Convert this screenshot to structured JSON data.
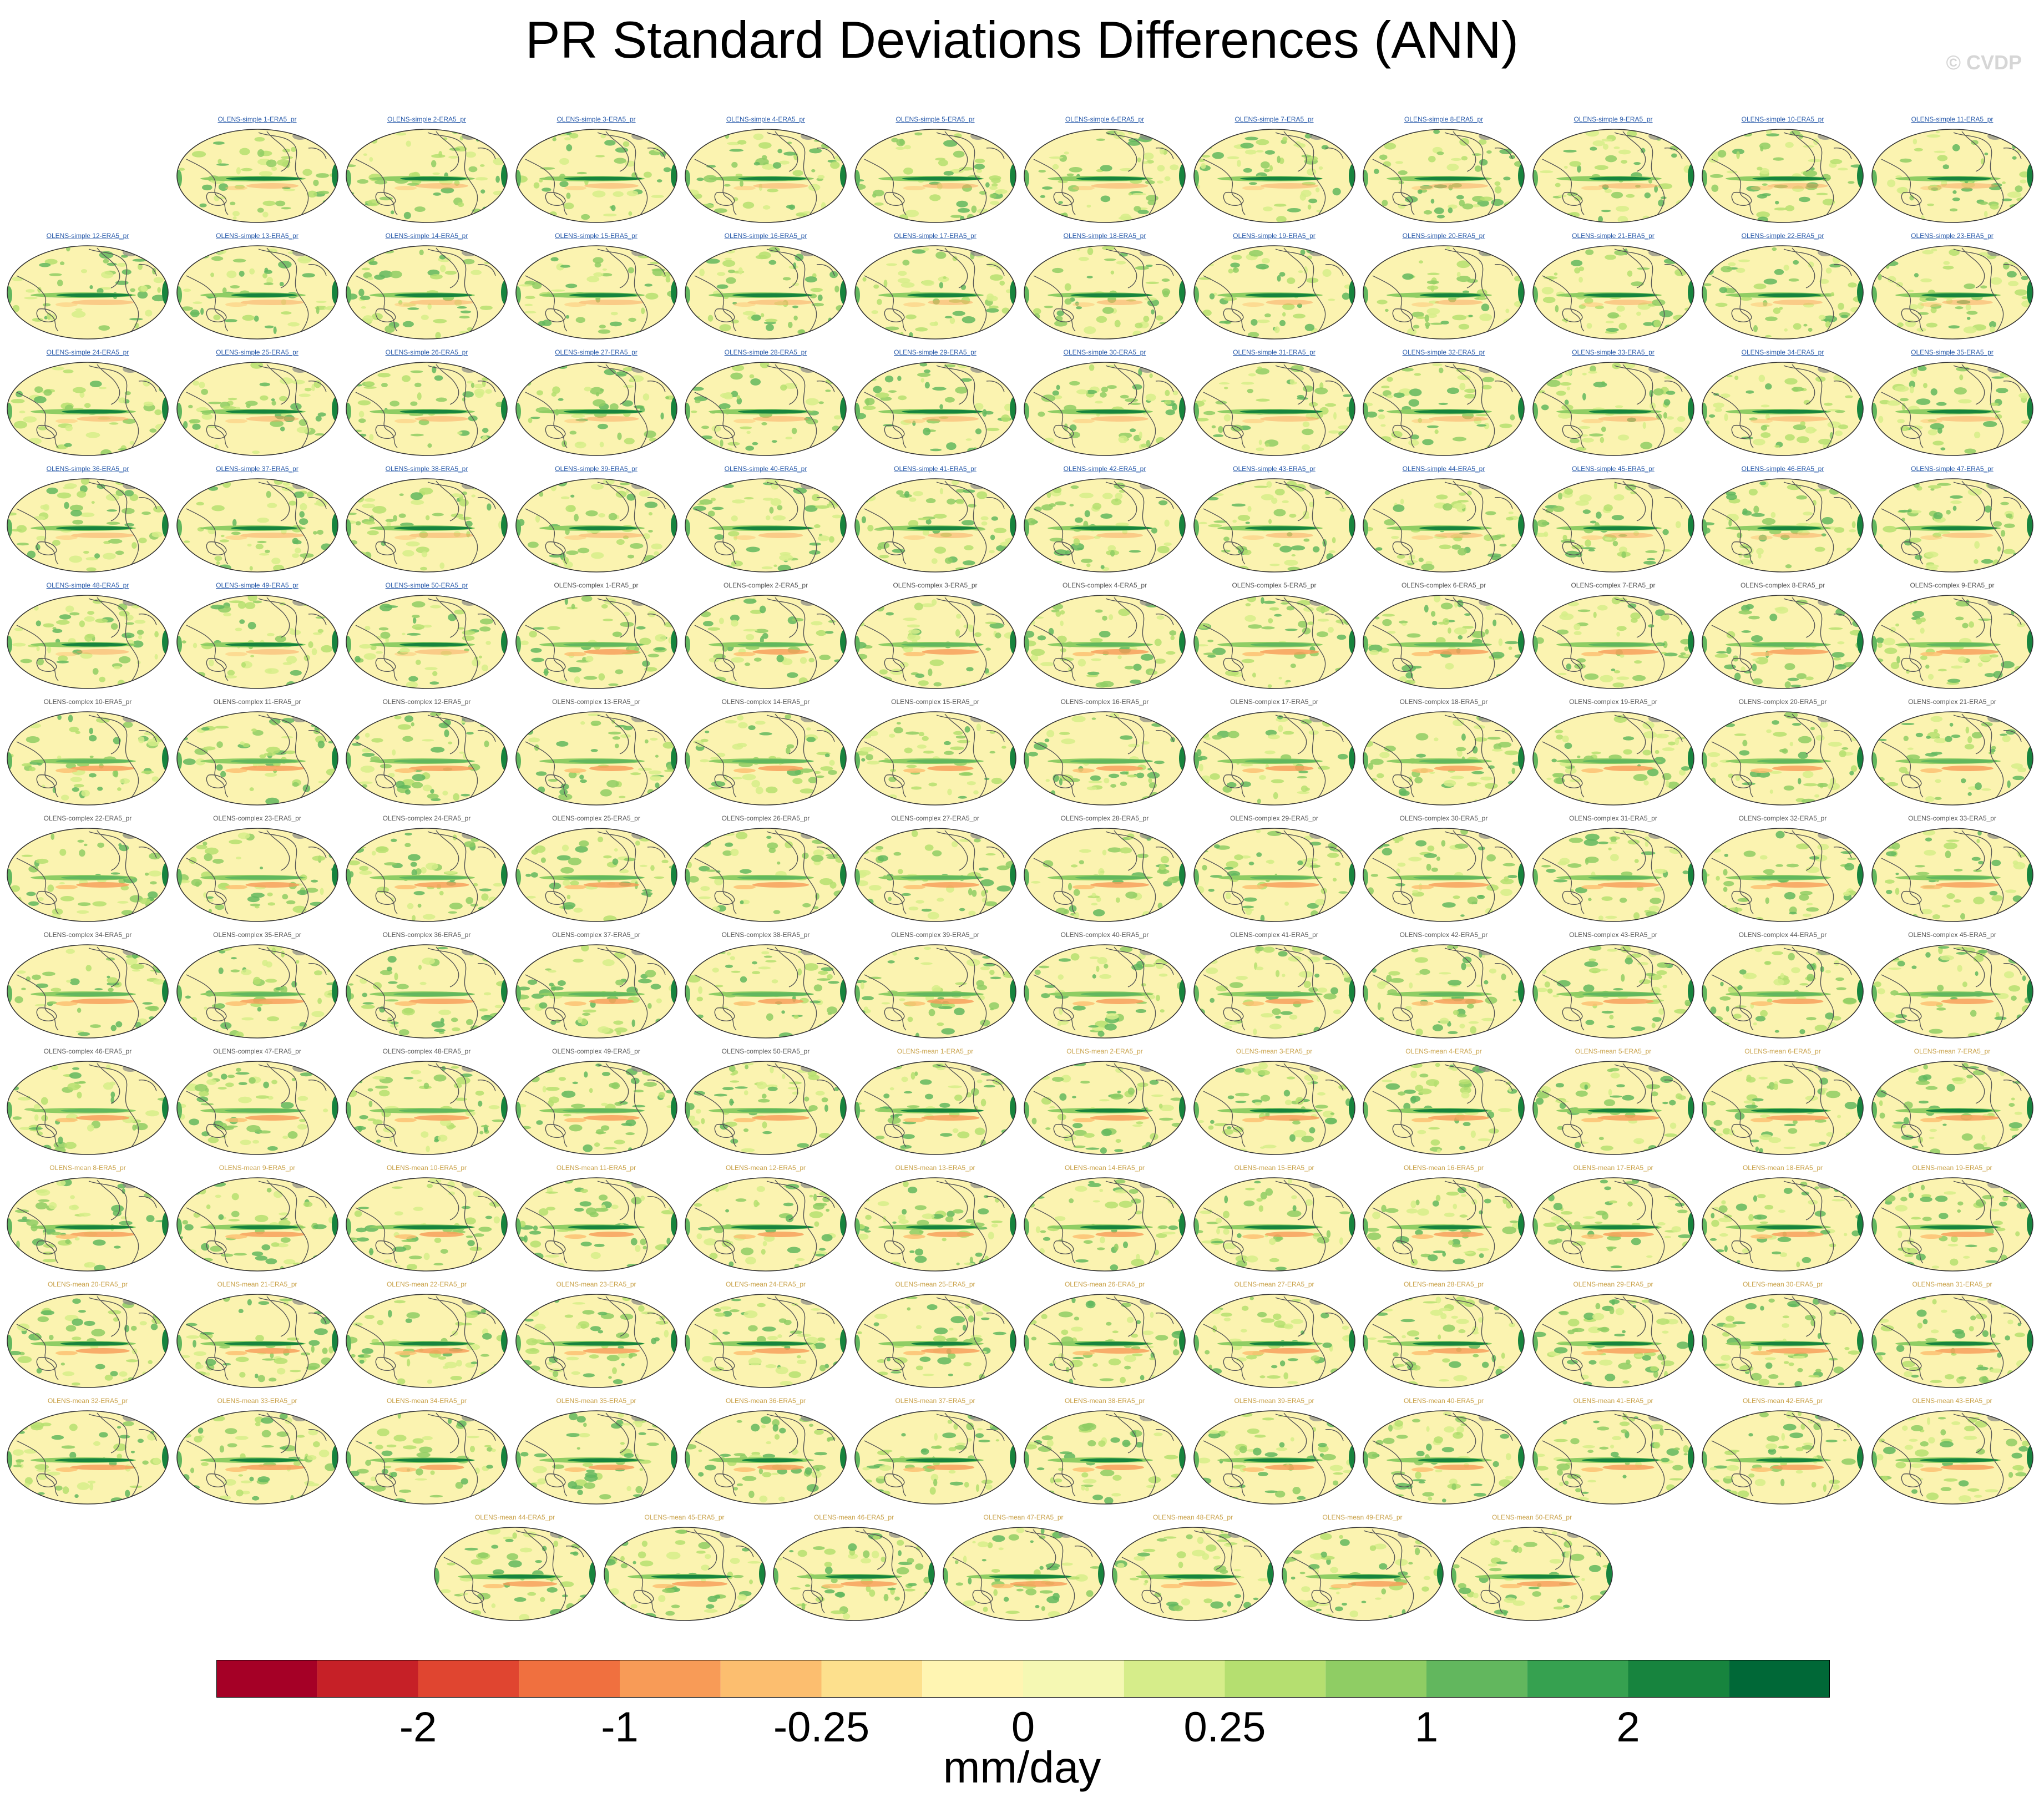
{
  "title": "PR Standard Deviations Differences (ANN)",
  "watermark": "© CVDP",
  "units": "mm/day",
  "colorbar": {
    "colors": [
      "#a50026",
      "#c62027",
      "#e04530",
      "#f0703f",
      "#f89b57",
      "#fcbe6f",
      "#fde08d",
      "#fff5b2",
      "#f5f8b3",
      "#d6ed8a",
      "#b5df70",
      "#8fcd64",
      "#62b75e",
      "#36a150",
      "#17843e",
      "#006837"
    ],
    "tick_labels": [
      "-2",
      "-1",
      "-0.25",
      "0",
      "0.25",
      "1",
      "2"
    ]
  },
  "panel_colors": {
    "simple": "#2b5cab",
    "complex": "#555555",
    "mean": "#c9a24a"
  },
  "panels": [
    {
      "label": "OLENS-simple 1-ERA5_pr",
      "group": "simple"
    },
    {
      "label": "OLENS-simple 2-ERA5_pr",
      "group": "simple"
    },
    {
      "label": "OLENS-simple 3-ERA5_pr",
      "group": "simple"
    },
    {
      "label": "OLENS-simple 4-ERA5_pr",
      "group": "simple"
    },
    {
      "label": "OLENS-simple 5-ERA5_pr",
      "group": "simple"
    },
    {
      "label": "OLENS-simple 6-ERA5_pr",
      "group": "simple"
    },
    {
      "label": "OLENS-simple 7-ERA5_pr",
      "group": "simple"
    },
    {
      "label": "OLENS-simple 8-ERA5_pr",
      "group": "simple"
    },
    {
      "label": "OLENS-simple 9-ERA5_pr",
      "group": "simple"
    },
    {
      "label": "OLENS-simple 10-ERA5_pr",
      "group": "simple"
    },
    {
      "label": "OLENS-simple 11-ERA5_pr",
      "group": "simple"
    },
    {
      "label": "OLENS-simple 12-ERA5_pr",
      "group": "simple"
    },
    {
      "label": "OLENS-simple 13-ERA5_pr",
      "group": "simple"
    },
    {
      "label": "OLENS-simple 14-ERA5_pr",
      "group": "simple"
    },
    {
      "label": "OLENS-simple 15-ERA5_pr",
      "group": "simple"
    },
    {
      "label": "OLENS-simple 16-ERA5_pr",
      "group": "simple"
    },
    {
      "label": "OLENS-simple 17-ERA5_pr",
      "group": "simple"
    },
    {
      "label": "OLENS-simple 18-ERA5_pr",
      "group": "simple"
    },
    {
      "label": "OLENS-simple 19-ERA5_pr",
      "group": "simple"
    },
    {
      "label": "OLENS-simple 20-ERA5_pr",
      "group": "simple"
    },
    {
      "label": "OLENS-simple 21-ERA5_pr",
      "group": "simple"
    },
    {
      "label": "OLENS-simple 22-ERA5_pr",
      "group": "simple"
    },
    {
      "label": "OLENS-simple 23-ERA5_pr",
      "group": "simple"
    },
    {
      "label": "OLENS-simple 24-ERA5_pr",
      "group": "simple"
    },
    {
      "label": "OLENS-simple 25-ERA5_pr",
      "group": "simple"
    },
    {
      "label": "OLENS-simple 26-ERA5_pr",
      "group": "simple"
    },
    {
      "label": "OLENS-simple 27-ERA5_pr",
      "group": "simple"
    },
    {
      "label": "OLENS-simple 28-ERA5_pr",
      "group": "simple"
    },
    {
      "label": "OLENS-simple 29-ERA5_pr",
      "group": "simple"
    },
    {
      "label": "OLENS-simple 30-ERA5_pr",
      "group": "simple"
    },
    {
      "label": "OLENS-simple 31-ERA5_pr",
      "group": "simple"
    },
    {
      "label": "OLENS-simple 32-ERA5_pr",
      "group": "simple"
    },
    {
      "label": "OLENS-simple 33-ERA5_pr",
      "group": "simple"
    },
    {
      "label": "OLENS-simple 34-ERA5_pr",
      "group": "simple"
    },
    {
      "label": "OLENS-simple 35-ERA5_pr",
      "group": "simple"
    },
    {
      "label": "OLENS-simple 36-ERA5_pr",
      "group": "simple"
    },
    {
      "label": "OLENS-simple 37-ERA5_pr",
      "group": "simple"
    },
    {
      "label": "OLENS-simple 38-ERA5_pr",
      "group": "simple"
    },
    {
      "label": "OLENS-simple 39-ERA5_pr",
      "group": "simple"
    },
    {
      "label": "OLENS-simple 40-ERA5_pr",
      "group": "simple"
    },
    {
      "label": "OLENS-simple 41-ERA5_pr",
      "group": "simple"
    },
    {
      "label": "OLENS-simple 42-ERA5_pr",
      "group": "simple"
    },
    {
      "label": "OLENS-simple 43-ERA5_pr",
      "group": "simple"
    },
    {
      "label": "OLENS-simple 44-ERA5_pr",
      "group": "simple"
    },
    {
      "label": "OLENS-simple 45-ERA5_pr",
      "group": "simple"
    },
    {
      "label": "OLENS-simple 46-ERA5_pr",
      "group": "simple"
    },
    {
      "label": "OLENS-simple 47-ERA5_pr",
      "group": "simple"
    },
    {
      "label": "OLENS-simple 48-ERA5_pr",
      "group": "simple"
    },
    {
      "label": "OLENS-simple 49-ERA5_pr",
      "group": "simple"
    },
    {
      "label": "OLENS-simple 50-ERA5_pr",
      "group": "simple"
    },
    {
      "label": "OLENS-complex 1-ERA5_pr",
      "group": "complex"
    },
    {
      "label": "OLENS-complex 2-ERA5_pr",
      "group": "complex"
    },
    {
      "label": "OLENS-complex 3-ERA5_pr",
      "group": "complex"
    },
    {
      "label": "OLENS-complex 4-ERA5_pr",
      "group": "complex"
    },
    {
      "label": "OLENS-complex 5-ERA5_pr",
      "group": "complex"
    },
    {
      "label": "OLENS-complex 6-ERA5_pr",
      "group": "complex"
    },
    {
      "label": "OLENS-complex 7-ERA5_pr",
      "group": "complex"
    },
    {
      "label": "OLENS-complex 8-ERA5_pr",
      "group": "complex"
    },
    {
      "label": "OLENS-complex 9-ERA5_pr",
      "group": "complex"
    },
    {
      "label": "OLENS-complex 10-ERA5_pr",
      "group": "complex"
    },
    {
      "label": "OLENS-complex 11-ERA5_pr",
      "group": "complex"
    },
    {
      "label": "OLENS-complex 12-ERA5_pr",
      "group": "complex"
    },
    {
      "label": "OLENS-complex 13-ERA5_pr",
      "group": "complex"
    },
    {
      "label": "OLENS-complex 14-ERA5_pr",
      "group": "complex"
    },
    {
      "label": "OLENS-complex 15-ERA5_pr",
      "group": "complex"
    },
    {
      "label": "OLENS-complex 16-ERA5_pr",
      "group": "complex"
    },
    {
      "label": "OLENS-complex 17-ERA5_pr",
      "group": "complex"
    },
    {
      "label": "OLENS-complex 18-ERA5_pr",
      "group": "complex"
    },
    {
      "label": "OLENS-complex 19-ERA5_pr",
      "group": "complex"
    },
    {
      "label": "OLENS-complex 20-ERA5_pr",
      "group": "complex"
    },
    {
      "label": "OLENS-complex 21-ERA5_pr",
      "group": "complex"
    },
    {
      "label": "OLENS-complex 22-ERA5_pr",
      "group": "complex"
    },
    {
      "label": "OLENS-complex 23-ERA5_pr",
      "group": "complex"
    },
    {
      "label": "OLENS-complex 24-ERA5_pr",
      "group": "complex"
    },
    {
      "label": "OLENS-complex 25-ERA5_pr",
      "group": "complex"
    },
    {
      "label": "OLENS-complex 26-ERA5_pr",
      "group": "complex"
    },
    {
      "label": "OLENS-complex 27-ERA5_pr",
      "group": "complex"
    },
    {
      "label": "OLENS-complex 28-ERA5_pr",
      "group": "complex"
    },
    {
      "label": "OLENS-complex 29-ERA5_pr",
      "group": "complex"
    },
    {
      "label": "OLENS-complex 30-ERA5_pr",
      "group": "complex"
    },
    {
      "label": "OLENS-complex 31-ERA5_pr",
      "group": "complex"
    },
    {
      "label": "OLENS-complex 32-ERA5_pr",
      "group": "complex"
    },
    {
      "label": "OLENS-complex 33-ERA5_pr",
      "group": "complex"
    },
    {
      "label": "OLENS-complex 34-ERA5_pr",
      "group": "complex"
    },
    {
      "label": "OLENS-complex 35-ERA5_pr",
      "group": "complex"
    },
    {
      "label": "OLENS-complex 36-ERA5_pr",
      "group": "complex"
    },
    {
      "label": "OLENS-complex 37-ERA5_pr",
      "group": "complex"
    },
    {
      "label": "OLENS-complex 38-ERA5_pr",
      "group": "complex"
    },
    {
      "label": "OLENS-complex 39-ERA5_pr",
      "group": "complex"
    },
    {
      "label": "OLENS-complex 40-ERA5_pr",
      "group": "complex"
    },
    {
      "label": "OLENS-complex 41-ERA5_pr",
      "group": "complex"
    },
    {
      "label": "OLENS-complex 42-ERA5_pr",
      "group": "complex"
    },
    {
      "label": "OLENS-complex 43-ERA5_pr",
      "group": "complex"
    },
    {
      "label": "OLENS-complex 44-ERA5_pr",
      "group": "complex"
    },
    {
      "label": "OLENS-complex 45-ERA5_pr",
      "group": "complex"
    },
    {
      "label": "OLENS-complex 46-ERA5_pr",
      "group": "complex"
    },
    {
      "label": "OLENS-complex 47-ERA5_pr",
      "group": "complex"
    },
    {
      "label": "OLENS-complex 48-ERA5_pr",
      "group": "complex"
    },
    {
      "label": "OLENS-complex 49-ERA5_pr",
      "group": "complex"
    },
    {
      "label": "OLENS-complex 50-ERA5_pr",
      "group": "complex"
    },
    {
      "label": "OLENS-mean 1-ERA5_pr",
      "group": "mean"
    },
    {
      "label": "OLENS-mean 2-ERA5_pr",
      "group": "mean"
    },
    {
      "label": "OLENS-mean 3-ERA5_pr",
      "group": "mean"
    },
    {
      "label": "OLENS-mean 4-ERA5_pr",
      "group": "mean"
    },
    {
      "label": "OLENS-mean 5-ERA5_pr",
      "group": "mean"
    },
    {
      "label": "OLENS-mean 6-ERA5_pr",
      "group": "mean"
    },
    {
      "label": "OLENS-mean 7-ERA5_pr",
      "group": "mean"
    },
    {
      "label": "OLENS-mean 8-ERA5_pr",
      "group": "mean"
    },
    {
      "label": "OLENS-mean 9-ERA5_pr",
      "group": "mean"
    },
    {
      "label": "OLENS-mean 10-ERA5_pr",
      "group": "mean"
    },
    {
      "label": "OLENS-mean 11-ERA5_pr",
      "group": "mean"
    },
    {
      "label": "OLENS-mean 12-ERA5_pr",
      "group": "mean"
    },
    {
      "label": "OLENS-mean 13-ERA5_pr",
      "group": "mean"
    },
    {
      "label": "OLENS-mean 14-ERA5_pr",
      "group": "mean"
    },
    {
      "label": "OLENS-mean 15-ERA5_pr",
      "group": "mean"
    },
    {
      "label": "OLENS-mean 16-ERA5_pr",
      "group": "mean"
    },
    {
      "label": "OLENS-mean 17-ERA5_pr",
      "group": "mean"
    },
    {
      "label": "OLENS-mean 18-ERA5_pr",
      "group": "mean"
    },
    {
      "label": "OLENS-mean 19-ERA5_pr",
      "group": "mean"
    },
    {
      "label": "OLENS-mean 20-ERA5_pr",
      "group": "mean"
    },
    {
      "label": "OLENS-mean 21-ERA5_pr",
      "group": "mean"
    },
    {
      "label": "OLENS-mean 22-ERA5_pr",
      "group": "mean"
    },
    {
      "label": "OLENS-mean 23-ERA5_pr",
      "group": "mean"
    },
    {
      "label": "OLENS-mean 24-ERA5_pr",
      "group": "mean"
    },
    {
      "label": "OLENS-mean 25-ERA5_pr",
      "group": "mean"
    },
    {
      "label": "OLENS-mean 26-ERA5_pr",
      "group": "mean"
    },
    {
      "label": "OLENS-mean 27-ERA5_pr",
      "group": "mean"
    },
    {
      "label": "OLENS-mean 28-ERA5_pr",
      "group": "mean"
    },
    {
      "label": "OLENS-mean 29-ERA5_pr",
      "group": "mean"
    },
    {
      "label": "OLENS-mean 30-ERA5_pr",
      "group": "mean"
    },
    {
      "label": "OLENS-mean 31-ERA5_pr",
      "group": "mean"
    },
    {
      "label": "OLENS-mean 32-ERA5_pr",
      "group": "mean"
    },
    {
      "label": "OLENS-mean 33-ERA5_pr",
      "group": "mean"
    },
    {
      "label": "OLENS-mean 34-ERA5_pr",
      "group": "mean"
    },
    {
      "label": "OLENS-mean 35-ERA5_pr",
      "group": "mean"
    },
    {
      "label": "OLENS-mean 36-ERA5_pr",
      "group": "mean"
    },
    {
      "label": "OLENS-mean 37-ERA5_pr",
      "group": "mean"
    },
    {
      "label": "OLENS-mean 38-ERA5_pr",
      "group": "mean"
    },
    {
      "label": "OLENS-mean 39-ERA5_pr",
      "group": "mean"
    },
    {
      "label": "OLENS-mean 40-ERA5_pr",
      "group": "mean"
    },
    {
      "label": "OLENS-mean 41-ERA5_pr",
      "group": "mean"
    },
    {
      "label": "OLENS-mean 42-ERA5_pr",
      "group": "mean"
    },
    {
      "label": "OLENS-mean 43-ERA5_pr",
      "group": "mean"
    },
    {
      "label": "OLENS-mean 44-ERA5_pr",
      "group": "mean"
    },
    {
      "label": "OLENS-mean 45-ERA5_pr",
      "group": "mean"
    },
    {
      "label": "OLENS-mean 46-ERA5_pr",
      "group": "mean"
    },
    {
      "label": "OLENS-mean 47-ERA5_pr",
      "group": "mean"
    },
    {
      "label": "OLENS-mean 48-ERA5_pr",
      "group": "mean"
    },
    {
      "label": "OLENS-mean 49-ERA5_pr",
      "group": "mean"
    },
    {
      "label": "OLENS-mean 50-ERA5_pr",
      "group": "mean"
    }
  ]
}
